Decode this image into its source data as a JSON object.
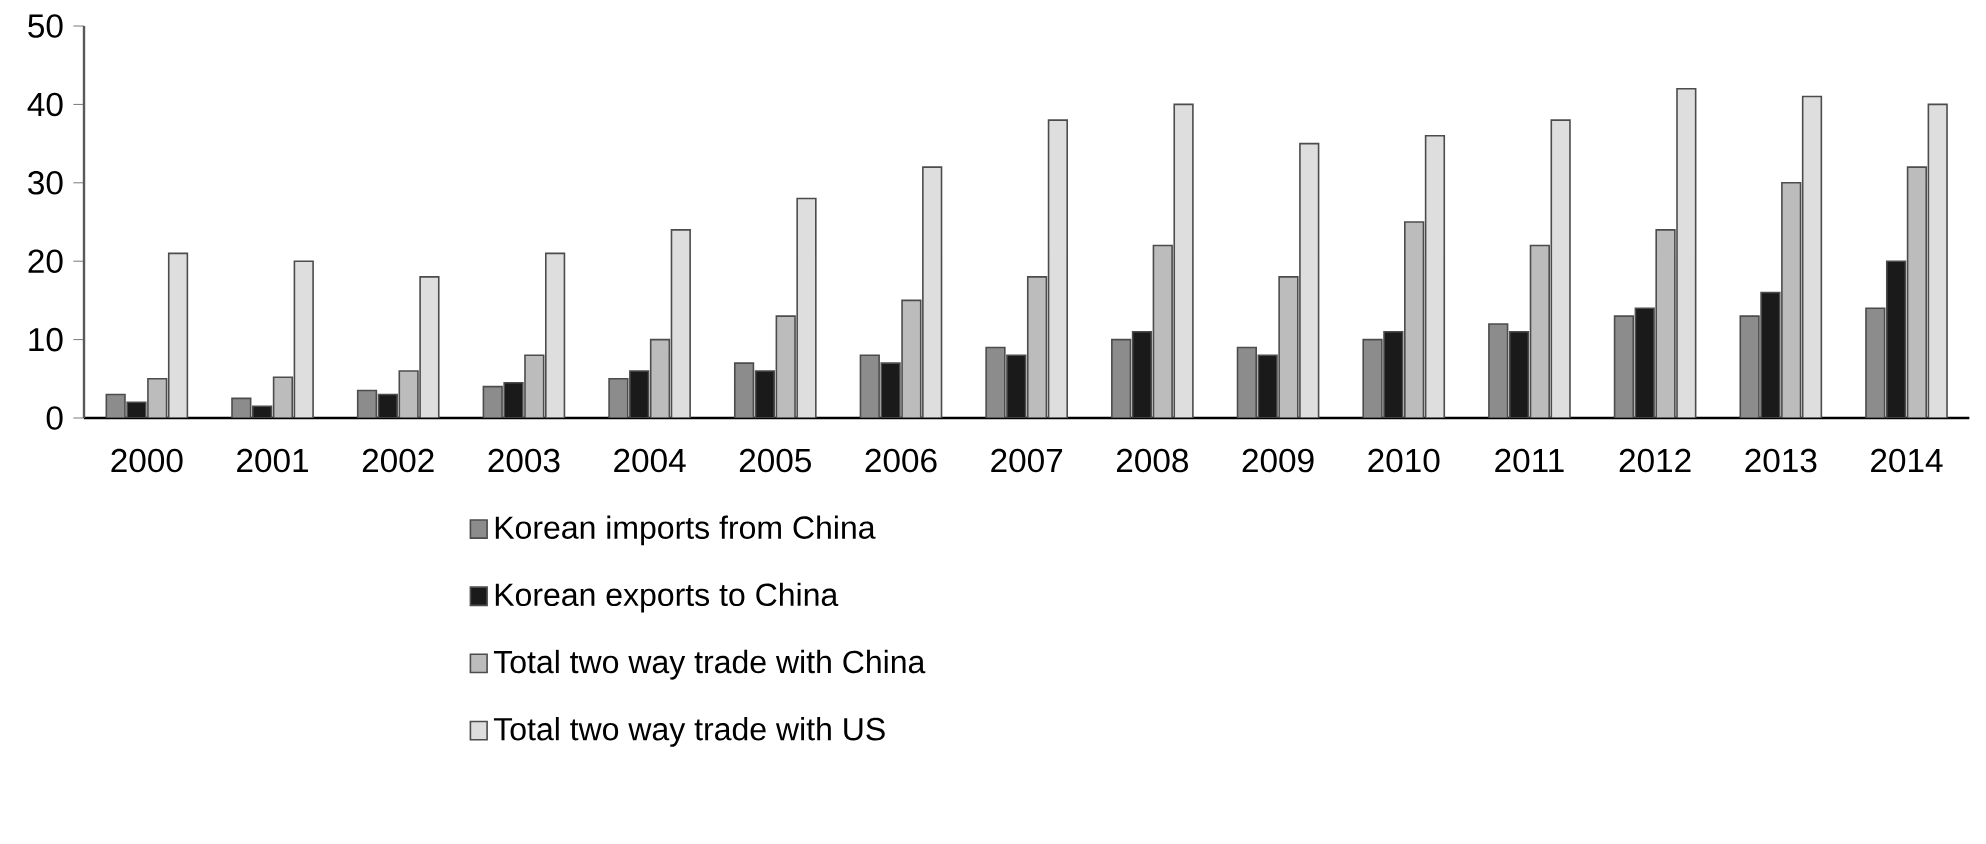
{
  "chart_data": {
    "type": "bar",
    "categories": [
      "2000",
      "2001",
      "2002",
      "2003",
      "2004",
      "2005",
      "2006",
      "2007",
      "2008",
      "2009",
      "2010",
      "2011",
      "2012",
      "2013",
      "2014"
    ],
    "series": [
      {
        "name": "Korean imports from China",
        "color": "#8c8c8c",
        "values": [
          3,
          2.5,
          3.5,
          4,
          5,
          7,
          8,
          9,
          10,
          9,
          10,
          12,
          13,
          13,
          14
        ]
      },
      {
        "name": "Korean exports to China",
        "color": "#1a1a1a",
        "values": [
          2,
          1.5,
          3,
          4.5,
          6,
          6,
          7,
          8,
          11,
          8,
          11,
          11,
          14,
          16,
          20
        ]
      },
      {
        "name": "Total two way trade with China",
        "color": "#bcbcbc",
        "values": [
          5,
          5.2,
          6,
          8,
          10,
          13,
          15,
          18,
          22,
          18,
          25,
          22,
          24,
          30,
          32
        ]
      },
      {
        "name": "Total two way trade with US",
        "color": "#dedede",
        "values": [
          21,
          20,
          18,
          21,
          24,
          28,
          32,
          38,
          40,
          35,
          36,
          38,
          42,
          41,
          40
        ]
      }
    ],
    "ylim": [
      0,
      50
    ],
    "yticks": [
      0,
      10,
      20,
      30,
      40,
      50
    ],
    "grid": false,
    "legend": "bottom"
  }
}
